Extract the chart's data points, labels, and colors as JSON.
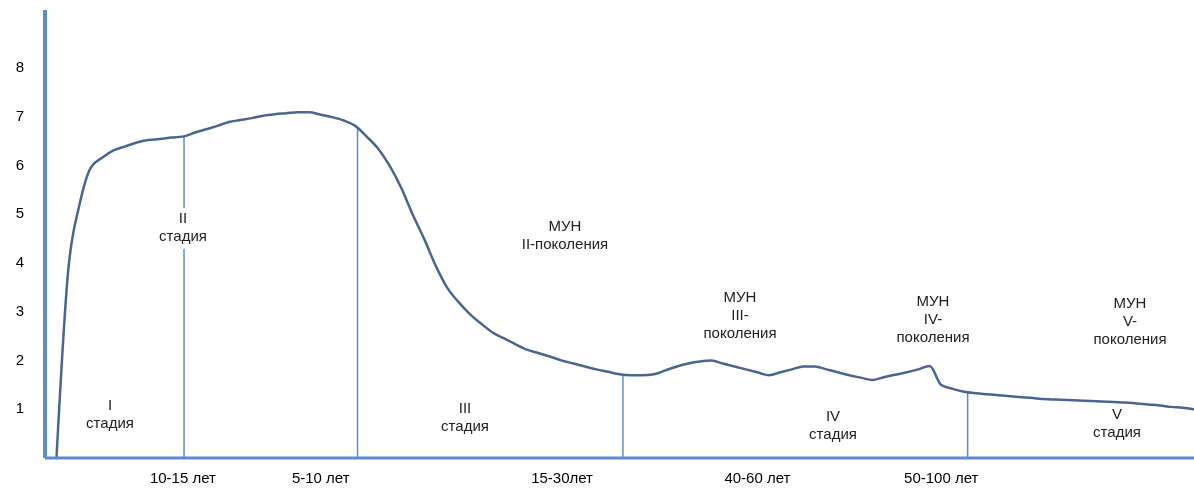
{
  "chart_data": {
    "type": "line",
    "categories": [
      null,
      null,
      null,
      null,
      null,
      null,
      null,
      null,
      null,
      null,
      null,
      "10-15 лет",
      null,
      null,
      null,
      null,
      null,
      null,
      null,
      null,
      null,
      null,
      null,
      "5-10 лет",
      null,
      null,
      null,
      null,
      null,
      null,
      null,
      null,
      null,
      null,
      null,
      null,
      null,
      null,
      null,
      null,
      null,
      null,
      null,
      null,
      "15-30лет",
      null,
      null,
      null,
      null,
      null,
      null,
      null,
      null,
      null,
      null,
      null,
      null,
      null,
      null,
      null,
      null,
      "40-60 лет",
      null,
      null,
      null,
      null,
      null,
      null,
      null,
      null,
      null,
      null,
      null,
      null,
      null,
      null,
      null,
      "50-100 лет",
      null,
      null,
      null,
      null,
      null,
      null,
      null,
      null,
      null,
      null,
      null,
      null,
      null,
      null,
      null,
      null,
      null,
      null,
      null,
      null,
      null,
      null
    ],
    "series": [
      {
        "color": "#4a6690",
        "values": [
          0,
          3.8,
          5.2,
          5.97,
          6.17,
          6.32,
          6.4,
          6.48,
          6.53,
          6.55,
          6.58,
          6.6,
          6.68,
          6.75,
          6.82,
          6.9,
          6.94,
          6.98,
          7.03,
          7.06,
          7.08,
          7.1,
          7.1,
          7.05,
          7.0,
          6.93,
          6.82,
          6.6,
          6.35,
          6.0,
          5.55,
          5.0,
          4.5,
          3.95,
          3.5,
          3.2,
          2.95,
          2.75,
          2.57,
          2.45,
          2.33,
          2.22,
          2.15,
          2.08,
          2.0,
          1.94,
          1.88,
          1.82,
          1.77,
          1.72,
          1.7,
          1.7,
          1.72,
          1.8,
          1.88,
          1.94,
          1.98,
          2.0,
          1.94,
          1.88,
          1.82,
          1.76,
          1.7,
          1.76,
          1.82,
          1.88,
          1.88,
          1.82,
          1.76,
          1.7,
          1.65,
          1.6,
          1.66,
          1.71,
          1.76,
          1.82,
          1.89,
          1.5,
          1.42,
          1.36,
          1.33,
          1.31,
          1.29,
          1.27,
          1.25,
          1.23,
          1.21,
          1.2,
          1.19,
          1.18,
          1.17,
          1.16,
          1.15,
          1.14,
          1.12,
          1.1,
          1.08,
          1.05,
          1.03,
          1.0
        ]
      }
    ],
    "ylim": [
      0,
      9.2
    ],
    "yticks": [
      1,
      2,
      3,
      4,
      5,
      6,
      7,
      8
    ],
    "annotations": [
      "I\nстадия",
      "II\nстадия",
      "МУН\nII-поколения",
      "III\nстадия",
      "МУН\nIII-\nпоколения",
      "IV\nстадия",
      "МУН\nIV-\nпоколения",
      "МУН\nV-\nпоколения",
      "V\nстадия"
    ],
    "grid": false,
    "marker": "none",
    "line_style": "solid"
  }
}
